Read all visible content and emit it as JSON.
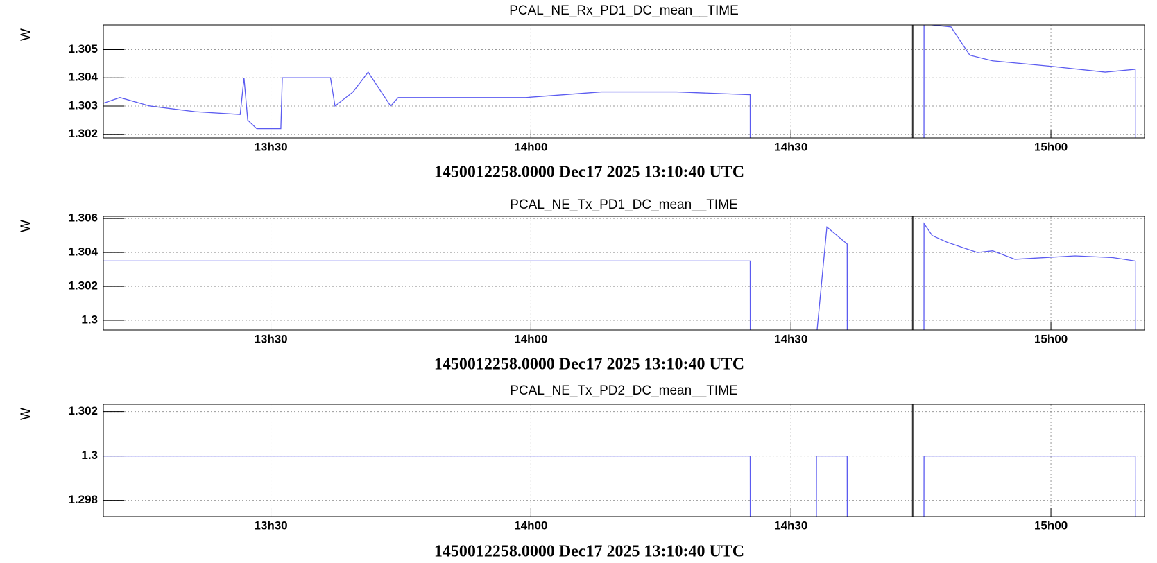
{
  "chart_data": [
    {
      "type": "line",
      "title": "PCAL_NE_Rx_PD1_DC_mean__TIME",
      "ylabel": "W",
      "xlabel": "1450012258.0000 Dec17 2025 13:10:40 UTC",
      "color": "#5b5bf0",
      "grid": true,
      "marker_x": 884.05,
      "x": [
        790.67,
        792.58,
        796.05,
        801.26,
        806.46,
        806.9,
        807.33,
        808.37,
        811.15,
        811.32,
        816.88,
        817.4,
        819.48,
        821.22,
        823.82,
        824.69,
        830.76,
        839.44,
        848.12,
        856.8,
        865.3,
        865.31,
        885.34,
        885.35,
        885.36,
        888.47,
        890.64,
        893.28,
        900.19,
        906.26,
        909.73,
        909.74
      ],
      "values": [
        1.3031,
        1.3033,
        1.303,
        1.3028,
        1.3027,
        1.304,
        1.3025,
        1.3022,
        1.3022,
        1.304,
        1.304,
        1.303,
        1.3035,
        1.3042,
        1.303,
        1.3033,
        1.3033,
        1.3033,
        1.3035,
        1.3035,
        1.3034,
        1.3,
        null,
        1.3,
        1.3059,
        1.3058,
        1.3048,
        1.3046,
        1.3044,
        1.3042,
        1.3043,
        1.3
      ],
      "xlim": [
        790.67,
        910.8
      ],
      "xticks": [
        {
          "value": 810,
          "label": "13h30"
        },
        {
          "value": 840,
          "label": "14h00"
        },
        {
          "value": 870,
          "label": "14h30"
        },
        {
          "value": 900,
          "label": "15h00"
        }
      ],
      "ylim": [
        1.30187,
        1.30587
      ],
      "yticks": [
        1.302,
        1.303,
        1.304,
        1.305
      ]
    },
    {
      "type": "line",
      "title": "PCAL_NE_Tx_PD1_DC_mean__TIME",
      "ylabel": "W",
      "xlabel": "1450012258.0000 Dec17 2025 13:10:40 UTC",
      "color": "#5b5bf0",
      "grid": true,
      "marker_x": 884.05,
      "x": [
        790.67,
        830.76,
        865.3,
        865.31,
        872.93,
        872.94,
        874.15,
        876.49,
        876.5,
        885.34,
        885.35,
        885.36,
        886.3,
        888.04,
        891.51,
        893.28,
        895.85,
        902.79,
        907.13,
        909.73,
        909.74
      ],
      "values": [
        1.3035,
        1.3035,
        1.3035,
        1.299,
        null,
        1.299,
        1.3055,
        1.3045,
        1.299,
        null,
        1.299,
        1.3057,
        1.305,
        1.3046,
        1.304,
        1.3041,
        1.3036,
        1.3038,
        1.3037,
        1.3035,
        1.299
      ],
      "xlim": [
        790.67,
        910.8
      ],
      "xticks": [
        {
          "value": 810,
          "label": "13h30"
        },
        {
          "value": 840,
          "label": "14h00"
        },
        {
          "value": 870,
          "label": "14h30"
        },
        {
          "value": 900,
          "label": "15h00"
        }
      ],
      "ylim": [
        1.29943,
        1.30613
      ],
      "yticks": [
        1.3,
        1.302,
        1.304,
        1.306
      ]
    },
    {
      "type": "line",
      "title": "PCAL_NE_Tx_PD2_DC_mean__TIME",
      "ylabel": "W",
      "xlabel": "1450012258.0000 Dec17 2025 13:10:40 UTC",
      "color": "#5b5bf0",
      "grid": true,
      "marker_x": 884.05,
      "x": [
        790.67,
        865.3,
        865.31,
        872.93,
        872.94,
        872.95,
        876.49,
        876.5,
        885.34,
        885.35,
        885.36,
        909.73,
        909.74
      ],
      "values": [
        1.3,
        1.3,
        1.297,
        null,
        1.297,
        1.3,
        1.3,
        1.297,
        null,
        1.297,
        1.3,
        1.3,
        1.297
      ],
      "xlim": [
        790.67,
        910.8
      ],
      "xticks": [
        {
          "value": 810,
          "label": "13h30"
        },
        {
          "value": 840,
          "label": "14h00"
        },
        {
          "value": 870,
          "label": "14h30"
        },
        {
          "value": 900,
          "label": "15h00"
        }
      ],
      "ylim": [
        1.29727,
        1.30233
      ],
      "yticks": [
        1.298,
        1.3,
        1.302
      ]
    }
  ]
}
